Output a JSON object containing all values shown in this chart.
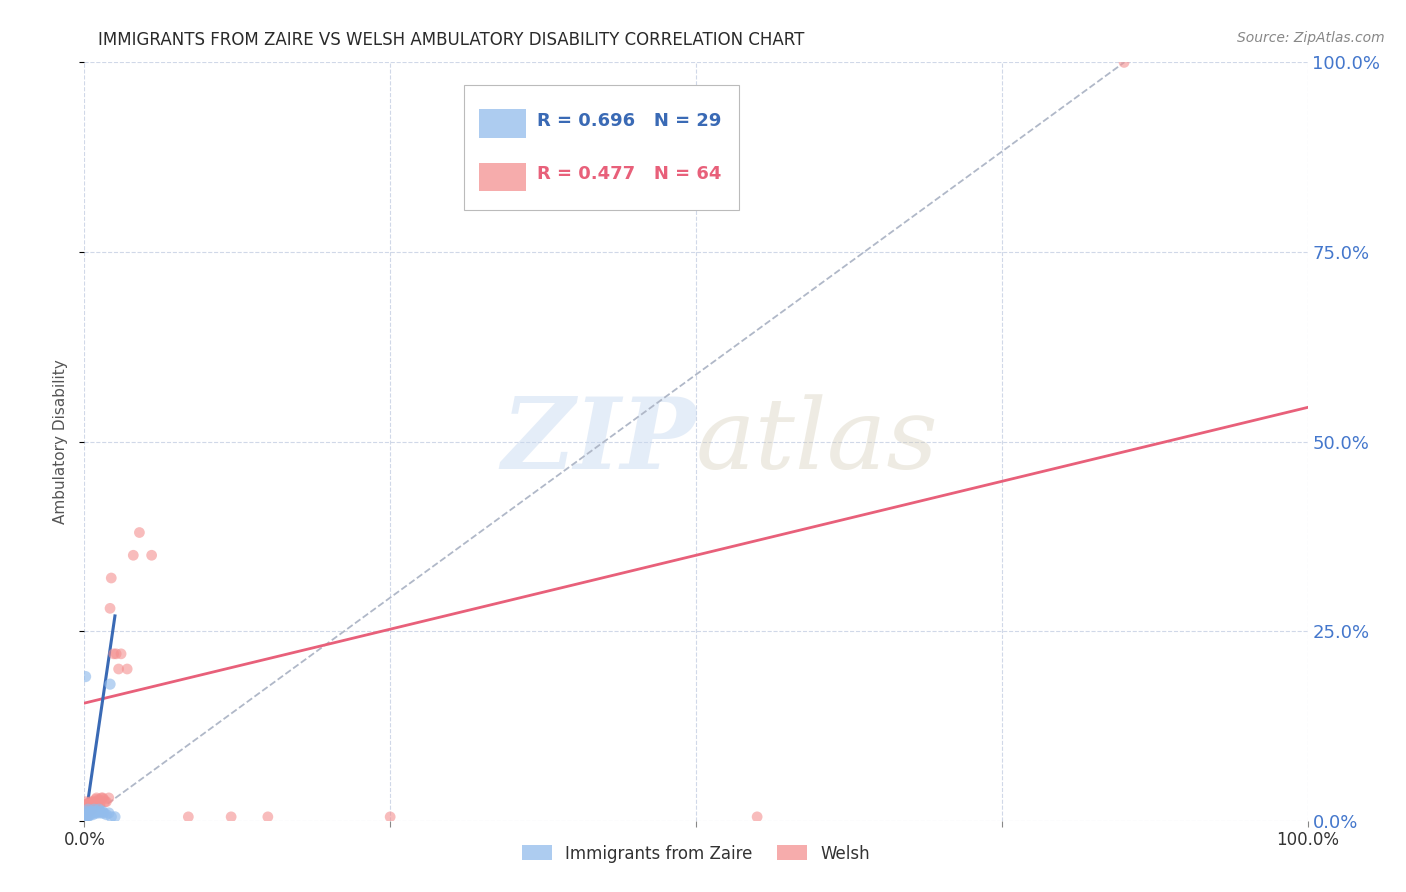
{
  "title": "IMMIGRANTS FROM ZAIRE VS WELSH AMBULATORY DISABILITY CORRELATION CHART",
  "source": "Source: ZipAtlas.com",
  "ylabel": "Ambulatory Disability",
  "ytick_labels": [
    "0.0%",
    "25.0%",
    "50.0%",
    "75.0%",
    "100.0%"
  ],
  "ytick_values": [
    0.0,
    0.25,
    0.5,
    0.75,
    1.0
  ],
  "xtick_values": [
    0.0,
    0.25,
    0.5,
    0.75,
    1.0
  ],
  "xtick_labels": [
    "0.0%",
    "",
    "",
    "",
    "100.0%"
  ],
  "legend_r_blue": "R = 0.696",
  "legend_n_blue": "N = 29",
  "legend_r_pink": "R = 0.477",
  "legend_n_pink": "N = 64",
  "legend_label_blue": "Immigrants from Zaire",
  "legend_label_pink": "Welsh",
  "watermark_zip": "ZIP",
  "watermark_atlas": "atlas",
  "blue_color": "#92bcec",
  "pink_color": "#f49090",
  "blue_line_color": "#3a6ab5",
  "pink_line_color": "#e8607a",
  "dashed_line_color": "#b0b8c8",
  "title_color": "#2a2a2a",
  "source_color": "#888888",
  "axis_label_color": "#555555",
  "tick_color_right": "#4477cc",
  "grid_color": "#d0d8e8",
  "background_color": "#ffffff",
  "blue_scatter_x": [
    0.001,
    0.002,
    0.002,
    0.003,
    0.003,
    0.004,
    0.005,
    0.005,
    0.006,
    0.007,
    0.007,
    0.008,
    0.009,
    0.01,
    0.011,
    0.012,
    0.013,
    0.014,
    0.015,
    0.016,
    0.018,
    0.02,
    0.021,
    0.022,
    0.001,
    0.001,
    0.002,
    0.003,
    0.025
  ],
  "blue_scatter_y": [
    0.005,
    0.008,
    0.012,
    0.01,
    0.015,
    0.01,
    0.012,
    0.008,
    0.01,
    0.012,
    0.008,
    0.015,
    0.01,
    0.012,
    0.01,
    0.015,
    0.012,
    0.01,
    0.012,
    0.01,
    0.008,
    0.01,
    0.18,
    0.005,
    0.19,
    0.005,
    0.005,
    0.005,
    0.005
  ],
  "pink_scatter_x": [
    0.001,
    0.001,
    0.001,
    0.001,
    0.001,
    0.001,
    0.001,
    0.001,
    0.001,
    0.001,
    0.002,
    0.002,
    0.002,
    0.002,
    0.002,
    0.003,
    0.003,
    0.003,
    0.003,
    0.004,
    0.004,
    0.004,
    0.004,
    0.005,
    0.005,
    0.005,
    0.005,
    0.006,
    0.006,
    0.007,
    0.007,
    0.008,
    0.008,
    0.009,
    0.009,
    0.01,
    0.01,
    0.011,
    0.012,
    0.013,
    0.014,
    0.015,
    0.016,
    0.017,
    0.018,
    0.02,
    0.021,
    0.022,
    0.024,
    0.026,
    0.028,
    0.03,
    0.035,
    0.04,
    0.045,
    0.055,
    0.085,
    0.12,
    0.15,
    0.25,
    0.55,
    0.85,
    0.001,
    0.001
  ],
  "pink_scatter_y": [
    0.005,
    0.008,
    0.01,
    0.012,
    0.015,
    0.018,
    0.02,
    0.022,
    0.025,
    0.005,
    0.008,
    0.012,
    0.015,
    0.018,
    0.022,
    0.01,
    0.015,
    0.018,
    0.022,
    0.012,
    0.015,
    0.018,
    0.022,
    0.015,
    0.018,
    0.022,
    0.025,
    0.018,
    0.022,
    0.018,
    0.025,
    0.02,
    0.025,
    0.022,
    0.028,
    0.025,
    0.03,
    0.022,
    0.028,
    0.025,
    0.03,
    0.03,
    0.028,
    0.025,
    0.025,
    0.03,
    0.28,
    0.32,
    0.22,
    0.22,
    0.2,
    0.22,
    0.2,
    0.35,
    0.38,
    0.35,
    0.005,
    0.005,
    0.005,
    0.005,
    0.005,
    1.0,
    0.005,
    0.005
  ],
  "blue_trend_x": [
    0.001,
    0.025
  ],
  "blue_trend_y": [
    0.005,
    0.27
  ],
  "pink_trend_x": [
    0.0,
    1.0
  ],
  "pink_trend_y": [
    0.155,
    0.545
  ],
  "dashed_trend_x": [
    0.0,
    0.85
  ],
  "dashed_trend_y": [
    0.0,
    1.0
  ],
  "xlim": [
    0.0,
    1.0
  ],
  "ylim": [
    0.0,
    1.0
  ],
  "figsize": [
    14.06,
    8.92
  ],
  "dpi": 100
}
